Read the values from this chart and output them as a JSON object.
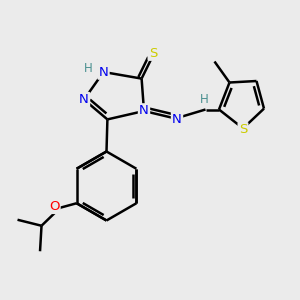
{
  "bg_color": "#ebebeb",
  "atom_colors": {
    "C": "#000000",
    "N": "#0000ee",
    "S": "#cccc00",
    "O": "#ff0000",
    "H": "#4a9090"
  },
  "bond_color": "#000000",
  "bond_width": 1.8,
  "font_size": 9.5
}
